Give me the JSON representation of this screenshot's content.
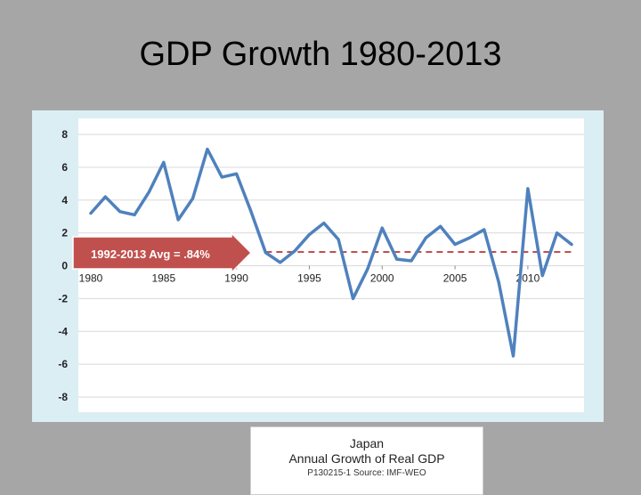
{
  "slide": {
    "title": "GDP Growth 1980-2013"
  },
  "callout": {
    "text": "1992-2013  Avg = .84%"
  },
  "legend": {
    "line1": "Japan",
    "line2": "Annual Growth of Real GDP",
    "source": "P130215-1 Source: IMF-WEO"
  },
  "colors": {
    "series": "#4f81bd",
    "avg_line": "#c0504d",
    "arrow": "#c0504d"
  },
  "chart_data": {
    "type": "line",
    "xlim": [
      1980,
      2013
    ],
    "ylim": [
      -8,
      8
    ],
    "y_ticks": [
      8,
      6,
      4,
      2,
      0,
      -2,
      -4,
      -6,
      -8
    ],
    "x_ticks": [
      1980,
      1985,
      1990,
      1995,
      2000,
      2005,
      2010
    ],
    "grid": true,
    "series": [
      {
        "x": [
          1980,
          1981,
          1982,
          1983,
          1984,
          1985,
          1986,
          1987,
          1988,
          1989,
          1990,
          1991,
          1992,
          1993,
          1994,
          1995,
          1996,
          1997,
          1998,
          1999,
          2000,
          2001,
          2002,
          2003,
          2004,
          2005,
          2006,
          2007,
          2008,
          2009,
          2010,
          2011,
          2012,
          2013
        ],
        "values": [
          3.2,
          4.2,
          3.3,
          3.1,
          4.5,
          6.3,
          2.8,
          4.1,
          7.1,
          5.4,
          5.6,
          3.3,
          0.8,
          0.2,
          0.9,
          1.9,
          2.6,
          1.6,
          -2.0,
          -0.2,
          2.3,
          0.4,
          0.3,
          1.7,
          2.4,
          1.3,
          1.7,
          2.2,
          -1.0,
          -5.5,
          4.7,
          -0.6,
          2.0,
          1.3
        ]
      }
    ],
    "reference_lines": [
      {
        "y": 0.84,
        "x_start": 1992,
        "x_end": 2013,
        "style": "dashed"
      }
    ]
  }
}
